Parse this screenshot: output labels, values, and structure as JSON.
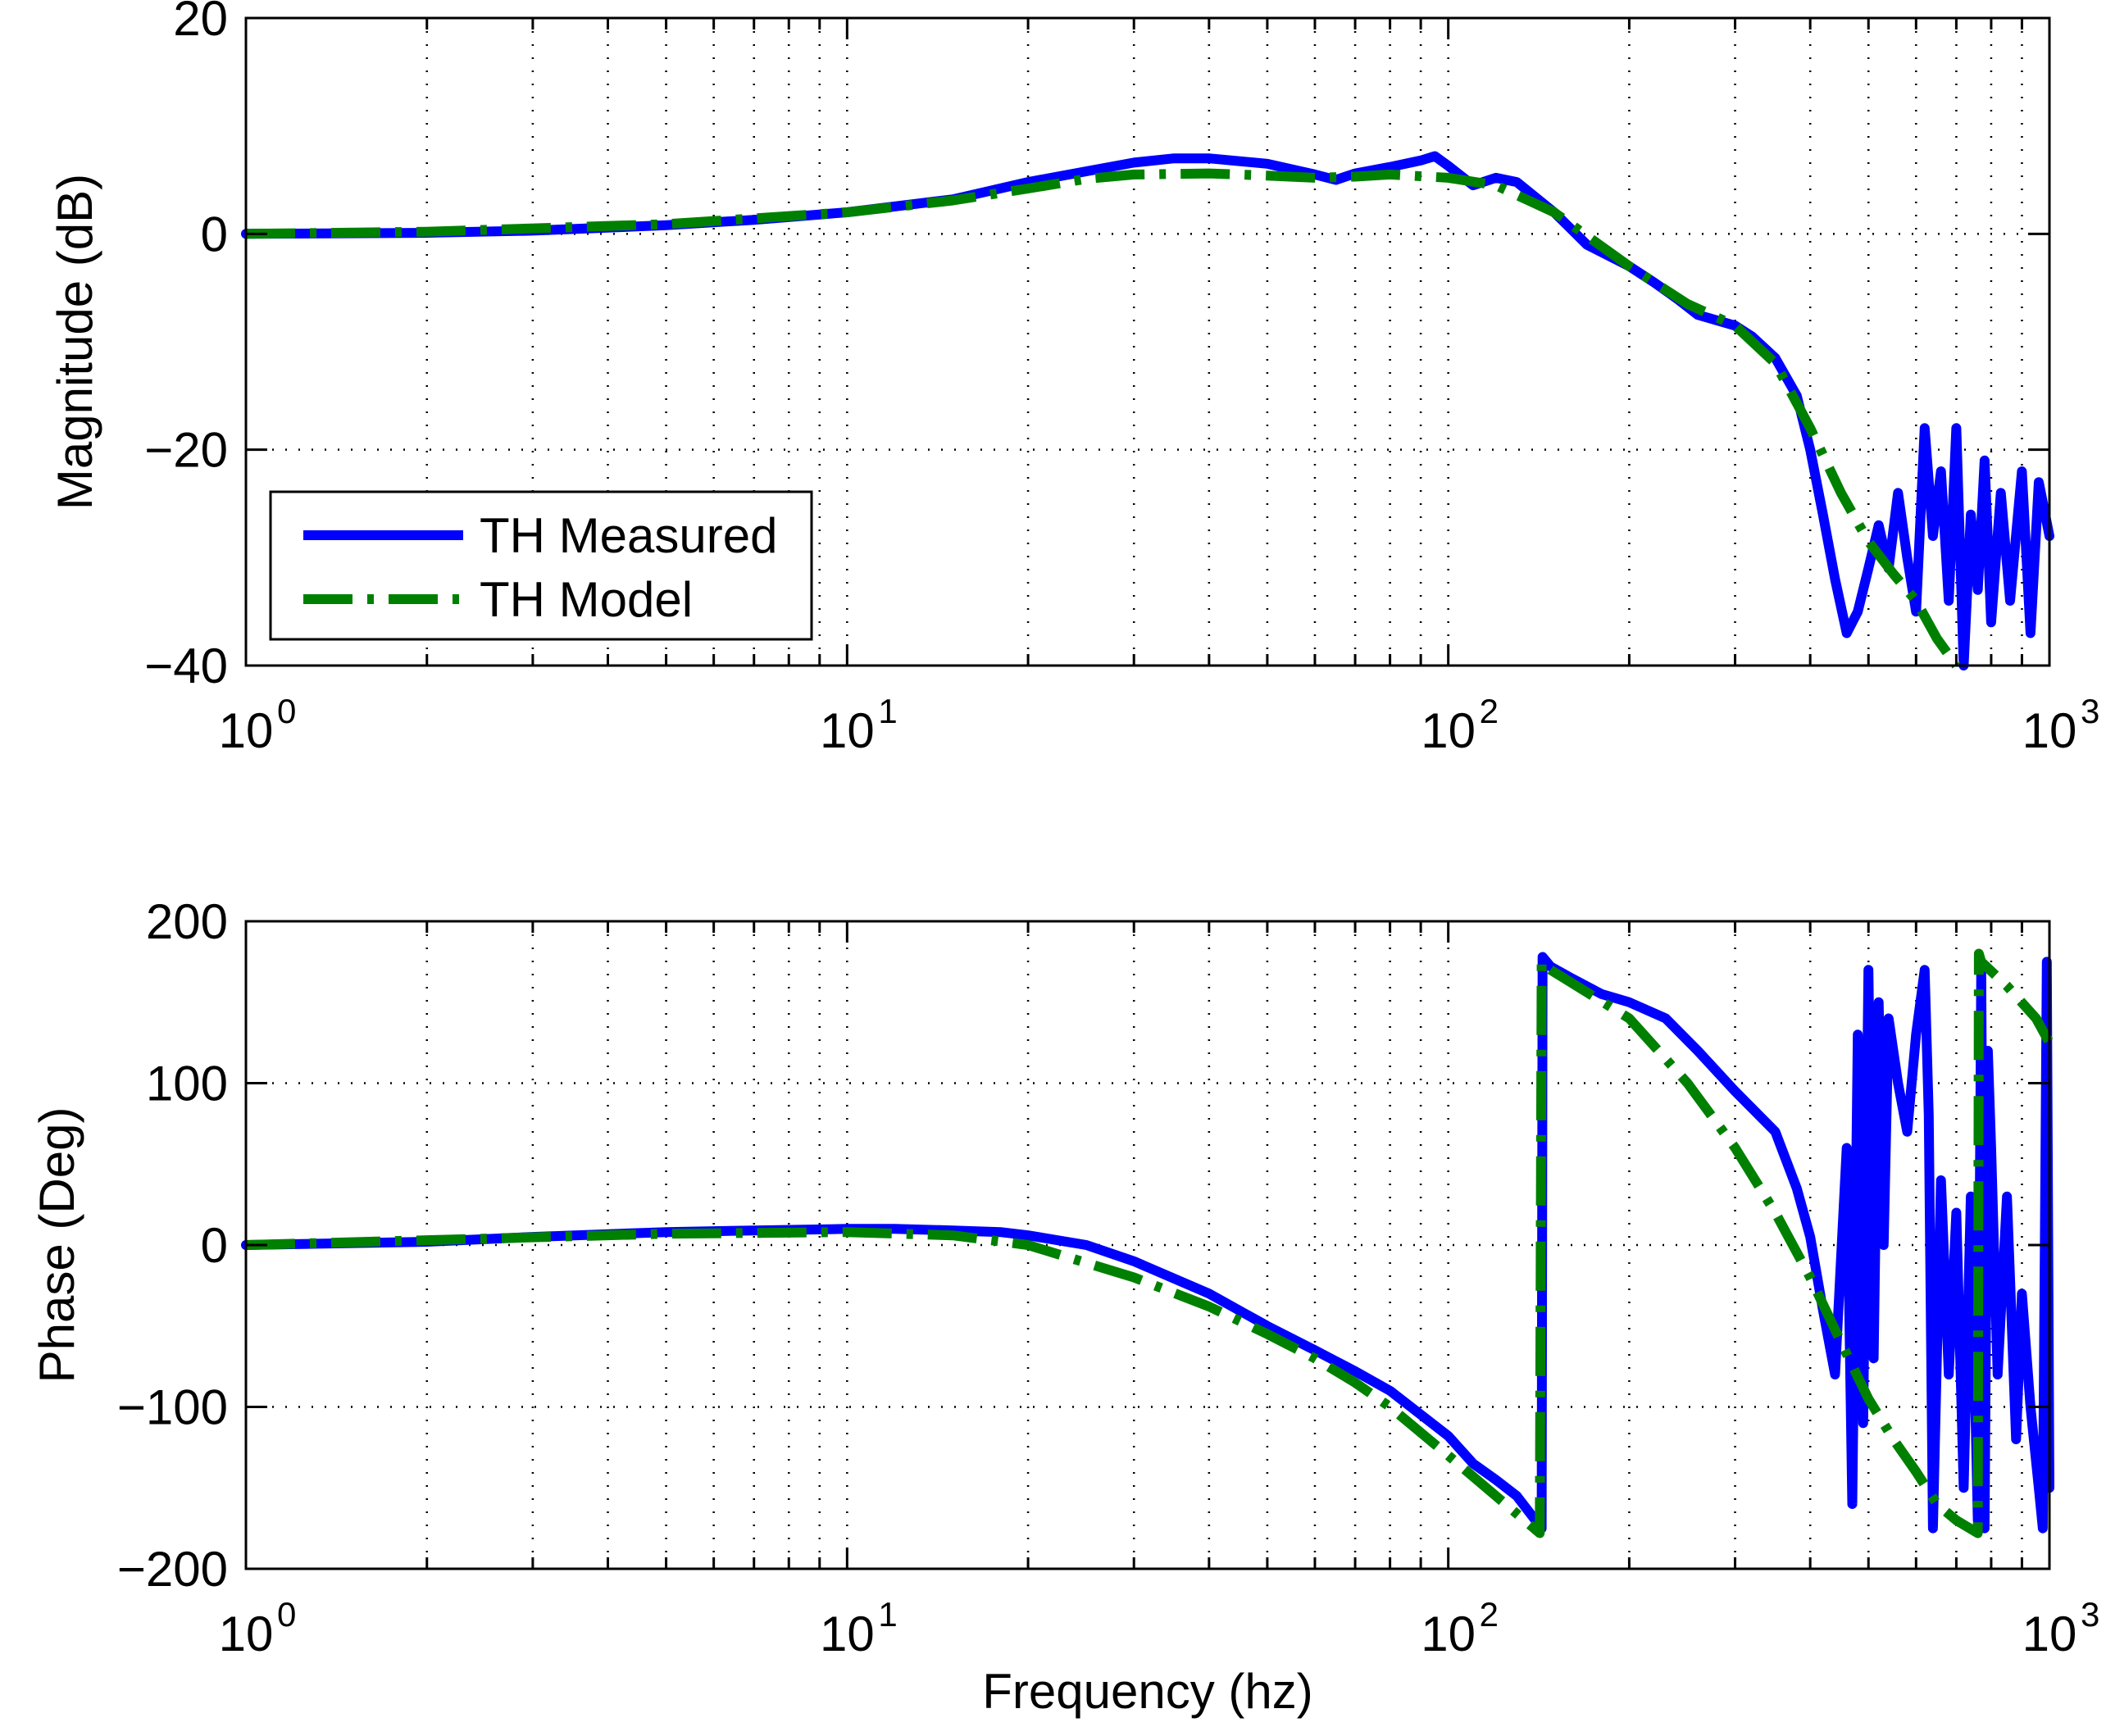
{
  "chart_data": [
    {
      "type": "line",
      "panel": "magnitude",
      "xscale": "log",
      "xlim": [
        1,
        1000
      ],
      "ylim": [
        -40,
        20
      ],
      "x_ticks": [
        1,
        10,
        100,
        1000
      ],
      "x_tick_labels": [
        {
          "base": "10",
          "exp": "0"
        },
        {
          "base": "10",
          "exp": "1"
        },
        {
          "base": "10",
          "exp": "2"
        },
        {
          "base": "10",
          "exp": "3"
        }
      ],
      "y_ticks": [
        20,
        0,
        -20,
        -40
      ],
      "y_tick_labels": [
        "20",
        "0",
        "−20",
        "−40"
      ],
      "ylabel": "Magnitude (dB)",
      "xlabel": "",
      "grid": true,
      "legend": {
        "placement": "bottom-left",
        "entries": [
          "TH Measured",
          "TH Model"
        ]
      },
      "series": [
        {
          "name": "TH Measured",
          "color": "#0000ff",
          "style": "solid",
          "x": [
            1,
            2,
            3,
            5,
            7,
            10,
            15,
            20,
            25,
            30,
            35,
            40,
            50,
            60,
            65,
            70,
            80,
            90,
            95,
            100,
            110,
            120,
            130,
            150,
            170,
            200,
            220,
            240,
            260,
            300,
            320,
            350,
            380,
            400,
            420,
            440,
            460,
            480,
            500,
            520,
            540,
            560,
            580,
            600,
            620,
            640,
            660,
            680,
            700,
            720,
            740,
            760,
            780,
            800,
            830,
            860,
            900,
            930,
            960,
            1000
          ],
          "y": [
            0,
            0.1,
            0.3,
            0.8,
            1.3,
            2.0,
            3.2,
            4.8,
            5.8,
            6.6,
            7.0,
            7.0,
            6.5,
            5.5,
            5.0,
            5.6,
            6.2,
            6.8,
            7.2,
            6.3,
            4.5,
            5.2,
            4.8,
            2.0,
            -1.0,
            -3.0,
            -4.5,
            -6.0,
            -7.5,
            -8.5,
            -9.5,
            -11.5,
            -15.0,
            -20.0,
            -26.0,
            -32.0,
            -37.0,
            -35.0,
            -31.0,
            -27.0,
            -31.0,
            -24.0,
            -30.0,
            -35.0,
            -18.0,
            -28.0,
            -22.0,
            -34.0,
            -18.0,
            -40.0,
            -26.0,
            -33.0,
            -21.0,
            -36.0,
            -24.0,
            -34.0,
            -22.0,
            -37.0,
            -23.0,
            -28.0
          ]
        },
        {
          "name": "TH Model",
          "color": "#008000",
          "style": "dash-dot",
          "x": [
            1,
            2,
            5,
            10,
            15,
            20,
            25,
            30,
            40,
            50,
            60,
            70,
            80,
            100,
            120,
            150,
            200,
            250,
            300,
            350,
            400,
            450,
            500,
            550,
            600,
            650,
            700
          ],
          "y": [
            0,
            0.2,
            0.9,
            2.0,
            3.1,
            4.2,
            5.1,
            5.5,
            5.6,
            5.4,
            5.2,
            5.3,
            5.5,
            5.2,
            4.5,
            2.0,
            -3.0,
            -6.5,
            -8.5,
            -12.0,
            -18.0,
            -24.0,
            -28.5,
            -31.5,
            -34.0,
            -37.5,
            -40.0
          ]
        }
      ]
    },
    {
      "type": "line",
      "panel": "phase",
      "xscale": "log",
      "xlim": [
        1,
        1000
      ],
      "ylim": [
        -200,
        200
      ],
      "x_ticks": [
        1,
        10,
        100,
        1000
      ],
      "x_tick_labels": [
        {
          "base": "10",
          "exp": "0"
        },
        {
          "base": "10",
          "exp": "1"
        },
        {
          "base": "10",
          "exp": "2"
        },
        {
          "base": "10",
          "exp": "3"
        }
      ],
      "y_ticks": [
        200,
        100,
        0,
        -100,
        -200
      ],
      "y_tick_labels": [
        "200",
        "100",
        "0",
        "−100",
        "−200"
      ],
      "ylabel": "Phase (Deg)",
      "xlabel": "Frequency (hz)",
      "grid": true,
      "series": [
        {
          "name": "TH Measured",
          "color": "#0000ff",
          "style": "solid",
          "x": [
            1,
            2,
            3,
            5,
            7,
            10,
            12,
            15,
            18,
            20,
            25,
            30,
            40,
            50,
            60,
            70,
            80,
            100,
            110,
            120,
            130,
            143,
            143.5,
            148,
            160,
            180,
            200,
            230,
            260,
            300,
            350,
            380,
            400,
            420,
            440,
            460,
            470,
            480,
            490,
            500,
            510,
            520,
            530,
            540,
            560,
            580,
            600,
            620,
            630,
            640,
            660,
            680,
            700,
            720,
            740,
            760,
            770,
            780,
            790,
            800,
            820,
            850,
            880,
            900,
            930,
            960,
            975,
            990,
            1000
          ],
          "y": [
            0,
            2,
            5,
            8,
            9,
            10,
            10,
            9,
            8,
            6,
            0,
            -10,
            -30,
            -50,
            -65,
            -78,
            -90,
            -118,
            -135,
            -145,
            -155,
            -175,
            178,
            172,
            165,
            155,
            150,
            140,
            120,
            95,
            70,
            35,
            5,
            -40,
            -80,
            60,
            -160,
            130,
            -110,
            170,
            -70,
            150,
            0,
            140,
            100,
            70,
            130,
            170,
            80,
            -175,
            40,
            -80,
            20,
            -150,
            30,
            -170,
            170,
            -175,
            120,
            60,
            -80,
            30,
            -120,
            -30,
            -100,
            -150,
            -175,
            175,
            -150
          ]
        },
        {
          "name": "TH Model",
          "color": "#008000",
          "style": "dash-dot",
          "x": [
            1,
            2,
            5,
            10,
            15,
            20,
            30,
            40,
            50,
            60,
            70,
            80,
            100,
            120,
            142,
            143,
            148,
            200,
            250,
            300,
            350,
            400,
            450,
            500,
            550,
            600,
            650,
            700,
            760,
            763,
            770,
            850,
            950,
            1000
          ],
          "y": [
            0,
            3,
            7,
            8,
            6,
            0,
            -20,
            -38,
            -55,
            -70,
            -85,
            -100,
            -130,
            -155,
            -178,
            175,
            170,
            140,
            100,
            60,
            20,
            -20,
            -60,
            -95,
            -120,
            -140,
            -160,
            -170,
            -178,
            180,
            175,
            160,
            140,
            125
          ]
        }
      ]
    }
  ]
}
